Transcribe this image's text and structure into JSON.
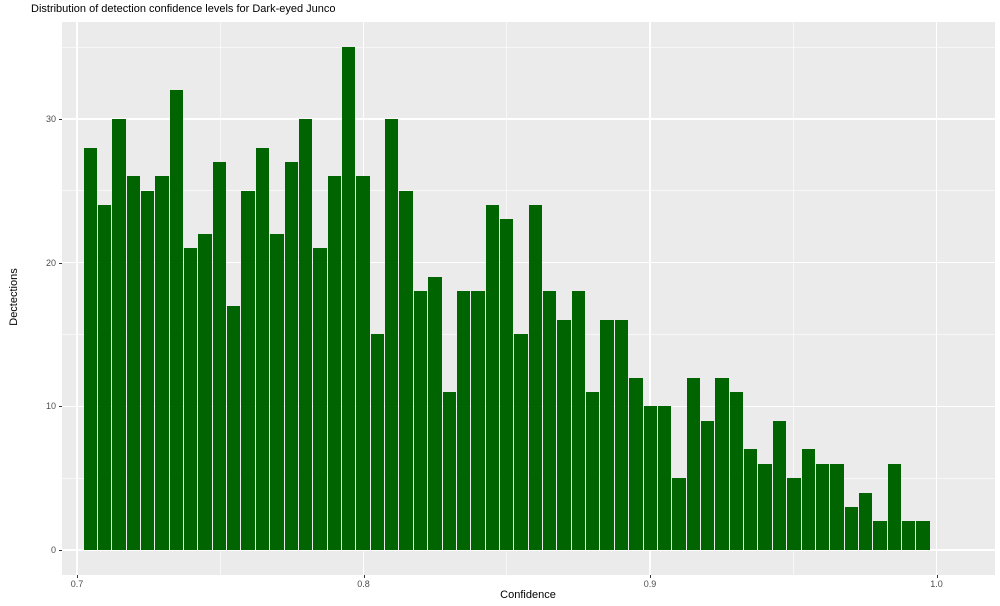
{
  "chart_data": {
    "type": "bar",
    "subtype": "histogram",
    "title": "Distribution of detection confidence levels for Dark-eyed Junco",
    "xlabel": "Confidence",
    "ylabel": "Dectections",
    "bin_start": 0.702,
    "binwidth": 0.005,
    "values": [
      28,
      24,
      30,
      26,
      25,
      26,
      32,
      21,
      22,
      27,
      17,
      25,
      28,
      22,
      27,
      30,
      21,
      26,
      35,
      26,
      15,
      30,
      25,
      18,
      19,
      11,
      18,
      18,
      24,
      23,
      15,
      24,
      18,
      16,
      18,
      11,
      16,
      16,
      12,
      10,
      10,
      5,
      12,
      9,
      12,
      11,
      7,
      6,
      9,
      5,
      7,
      6,
      6,
      3,
      4,
      2,
      6,
      2,
      2
    ],
    "xlim": [
      0.695,
      1.02
    ],
    "ylim": [
      0,
      36.75
    ],
    "grid": "on",
    "legend": "none",
    "x_axis": {
      "tick_values": [
        0.7,
        0.8,
        0.9,
        1.0
      ],
      "tick_labels": [
        "0.7",
        "0.8",
        "0.9",
        "1.0"
      ],
      "minor_tick_values": [
        0.75,
        0.85,
        0.95
      ]
    },
    "y_axis": {
      "tick_values": [
        0,
        10,
        20,
        30
      ],
      "tick_labels": [
        "0",
        "10",
        "20",
        "30"
      ],
      "minor_tick_values": [
        5,
        15,
        25,
        35
      ]
    },
    "colors": {
      "bar_fill": "#006400",
      "panel_background": "#ebebeb",
      "gridline": "#ffffff",
      "tick_text": "#4d4d4d",
      "title_text": "#000000"
    }
  }
}
